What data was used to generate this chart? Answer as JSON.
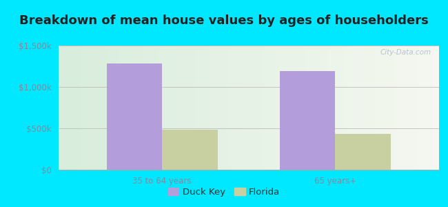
{
  "title": "Breakdown of mean house values by ages of householders",
  "categories": [
    "35 to 64 years",
    "65 years+"
  ],
  "duck_key_values": [
    1280000,
    1190000
  ],
  "florida_values": [
    480000,
    430000
  ],
  "duck_key_color": "#b39ddb",
  "florida_color": "#c8cfa0",
  "ylim": [
    0,
    1500000
  ],
  "yticks": [
    0,
    500000,
    1000000,
    1500000
  ],
  "ytick_labels": [
    "$0",
    "$500k",
    "$1,000k",
    "$1,500k"
  ],
  "legend_labels": [
    "Duck Key",
    "Florida"
  ],
  "background_outer": "#00e8ff",
  "bar_width": 0.32,
  "watermark": "City-Data.com",
  "title_fontsize": 13,
  "tick_fontsize": 8.5,
  "legend_fontsize": 9.5,
  "tick_color": "#888899"
}
